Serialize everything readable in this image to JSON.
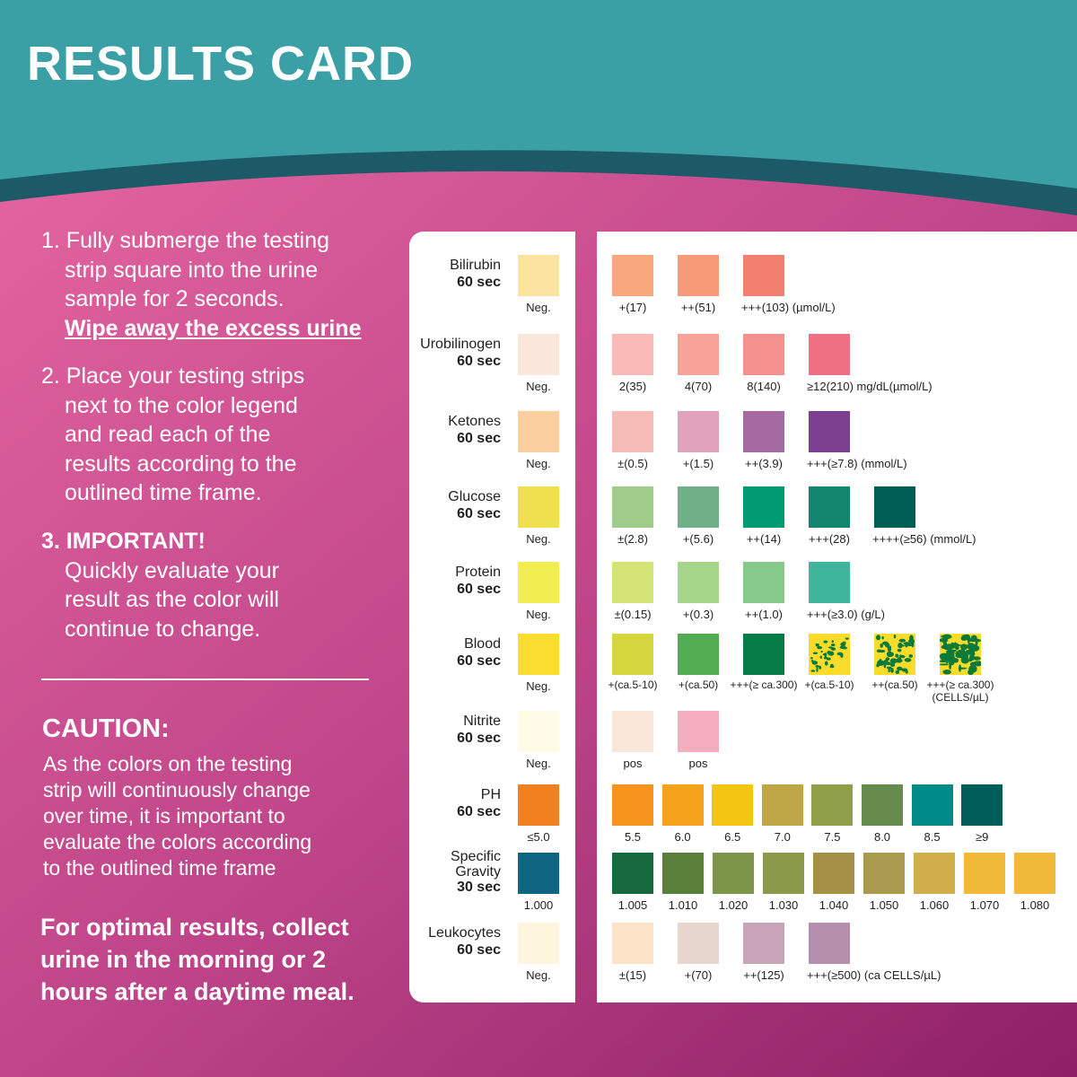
{
  "title": "RESULTS CARD",
  "colors": {
    "teal": "#3aa0a5",
    "band": "#1c5a68",
    "pink_light": "#e2649f",
    "pink_dark": "#9e2a6e"
  },
  "instructions": {
    "step1": [
      "1. Fully submerge the testing",
      "strip square into the urine",
      "sample for 2 seconds.",
      "Wipe away the excess urine"
    ],
    "step2": [
      "2. Place your testing strips",
      "next to the color legend",
      "and read each of the",
      "results according to the",
      "outlined time frame."
    ],
    "step3": [
      "3. IMPORTANT!",
      "Quickly evaluate your",
      "result as the color will",
      "continue to change."
    ]
  },
  "caution": {
    "heading": "CAUTION:",
    "lines": [
      "As the colors on the testing",
      "strip will continuously change",
      "over time, it is important to",
      "evaluate the colors according",
      "to the outlined time frame"
    ]
  },
  "tip": [
    "For optimal results, collect",
    "urine in the morning or 2",
    "hours after a daytime meal."
  ],
  "rows": [
    {
      "name": "Bilirubin",
      "time": "60 sec",
      "neg": {
        "label": "Neg.",
        "color": "#fde3a0"
      },
      "swatches": [
        {
          "label": "+(17)",
          "color": "#f7a97d"
        },
        {
          "label": "++(51)",
          "color": "#f79a78"
        },
        {
          "label": "+++(103) (µmol/L)",
          "color": "#f28070"
        }
      ]
    },
    {
      "name": "Urobilinogen",
      "time": "60 sec",
      "neg": {
        "label": "Neg.",
        "color": "#fbe6dc"
      },
      "swatches": [
        {
          "label": "2(35)",
          "color": "#f9b9b7"
        },
        {
          "label": "4(70)",
          "color": "#f7a39a"
        },
        {
          "label": "8(140)",
          "color": "#f4918f"
        },
        {
          "label": "≥12(210) mg/dL(µmol/L)",
          "color": "#ef6f83"
        }
      ]
    },
    {
      "name": "Ketones",
      "time": "60 sec",
      "neg": {
        "label": "Neg.",
        "color": "#fcd09e"
      },
      "swatches": [
        {
          "label": "±(0.5)",
          "color": "#f8bcb8"
        },
        {
          "label": "+(1.5)",
          "color": "#e0a2bd"
        },
        {
          "label": "++(3.9)",
          "color": "#a56aa2"
        },
        {
          "label": "+++(≥7.8) (mmol/L)",
          "color": "#7d3f8f"
        }
      ]
    },
    {
      "name": "Glucose",
      "time": "60 sec",
      "neg": {
        "label": "Neg.",
        "color": "#f0e050"
      },
      "swatches": [
        {
          "label": "±(2.8)",
          "color": "#a0cc8a"
        },
        {
          "label": "+(5.6)",
          "color": "#70b088"
        },
        {
          "label": "++(14)",
          "color": "#009a73"
        },
        {
          "label": "+++(28)",
          "color": "#138670"
        },
        {
          "label": "++++(≥56) (mmol/L)",
          "color": "#005e56"
        }
      ]
    },
    {
      "name": "Protein",
      "time": "60 sec",
      "neg": {
        "label": "Neg.",
        "color": "#f2ee52"
      },
      "swatches": [
        {
          "label": "±(0.15)",
          "color": "#d4e477"
        },
        {
          "label": "+(0.3)",
          "color": "#a6d68a"
        },
        {
          "label": "++(1.0)",
          "color": "#87c98a"
        },
        {
          "label": "+++(≥3.0) (g/L)",
          "color": "#3fb59c"
        }
      ]
    },
    {
      "name": "Blood",
      "time": "60 sec",
      "neg": {
        "label": "Neg.",
        "color": "#fbdd30"
      },
      "swatches": [
        {
          "label": "+(ca.5-10)",
          "color": "#d6d63e"
        },
        {
          "label": "+(ca.50)",
          "color": "#52ad52"
        },
        {
          "label": "+++(≥ ca.300)",
          "color": "#077c48"
        },
        {
          "label": "+(ca.5-10)",
          "color": "#fbdc2a",
          "spots": "#0a7a3a",
          "density": 0.25
        },
        {
          "label": "++(ca.50)",
          "color": "#fbdc2a",
          "spots": "#0a7a3a",
          "density": 0.45
        },
        {
          "label": "+++(≥ ca.300)\n(CELLS/µL)",
          "color": "#fbdc2a",
          "spots": "#0a7a3a",
          "density": 0.8
        }
      ]
    },
    {
      "name": "Nitrite",
      "time": "60 sec",
      "neg": {
        "label": "Neg.",
        "color": "#fffbe6"
      },
      "swatches": [
        {
          "label": "pos",
          "color": "#fbe6da"
        },
        {
          "label": "pos",
          "color": "#f5aec0"
        }
      ]
    },
    {
      "name": "PH",
      "time": "60 sec",
      "neg": {
        "label": "≤5.0",
        "color": "#f08020"
      },
      "swatches": [
        {
          "label": "5.5",
          "color": "#f7941d"
        },
        {
          "label": "6.0",
          "color": "#f7a21c"
        },
        {
          "label": "6.5",
          "color": "#f2c613"
        },
        {
          "label": "7.0",
          "color": "#bfa748"
        },
        {
          "label": "7.5",
          "color": "#8e9f48"
        },
        {
          "label": "8.0",
          "color": "#678b4c"
        },
        {
          "label": "8.5",
          "color": "#008a88"
        },
        {
          "label": "≥9",
          "color": "#005d5a"
        }
      ]
    },
    {
      "name": "Specific Gravity",
      "time": "30 sec",
      "neg": {
        "label": "1.000",
        "color": "#0f6480"
      },
      "swatches": [
        {
          "label": "1.005",
          "color": "#166a3e"
        },
        {
          "label": "1.010",
          "color": "#5a7f3a"
        },
        {
          "label": "1.020",
          "color": "#7d9548"
        },
        {
          "label": "1.030",
          "color": "#8a9a4a"
        },
        {
          "label": "1.040",
          "color": "#a59048"
        },
        {
          "label": "1.050",
          "color": "#a99a50"
        },
        {
          "label": "1.060",
          "color": "#d0ae4a"
        },
        {
          "label": "1.070",
          "color": "#f0b938"
        },
        {
          "label": "1.080",
          "color": "#f0b93a"
        }
      ]
    },
    {
      "name": "Leukocytes",
      "time": "60 sec",
      "neg": {
        "label": "Neg.",
        "color": "#fdf6dc"
      },
      "swatches": [
        {
          "label": "±(15)",
          "color": "#fde3c8"
        },
        {
          "label": "+(70)",
          "color": "#e7d6cd"
        },
        {
          "label": "++(125)",
          "color": "#c8a4b8"
        },
        {
          "label": "+++(≥500) (ca CELLS/µL)",
          "color": "#b58fab"
        }
      ]
    }
  ]
}
